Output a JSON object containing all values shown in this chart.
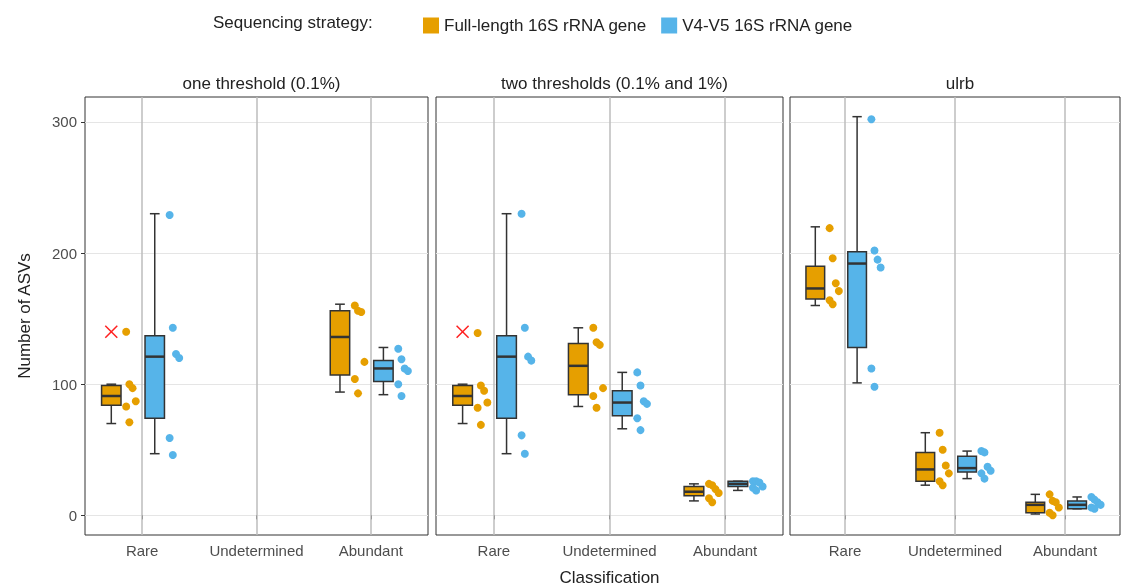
{
  "chart_data": [
    {
      "type": "box",
      "title": "one threshold (0.1%)",
      "ylabel": "Number of ASVs",
      "legend_title": "Sequencing strategy:",
      "legend": "top",
      "categories": [
        "Rare",
        "Undetermined",
        "Abundant"
      ],
      "ylim": [
        -15,
        319
      ],
      "yticks": [
        0,
        100,
        200,
        300
      ],
      "grid": true,
      "series": [
        {
          "name": "Full-length 16S rRNA gene",
          "color": "#e69f00",
          "boxes": [
            {
              "low": 70,
              "q1": 84,
              "median": 91,
              "q3": 99,
              "high": 100,
              "outliers": [
                140
              ]
            },
            null,
            {
              "low": 94,
              "q1": 107,
              "median": 136,
              "q3": 156,
              "high": 161
            }
          ]
        },
        {
          "name": "V4-V5 16S rRNA gene",
          "color": "#56b4e9",
          "boxes": [
            {
              "low": 47,
              "q1": 74,
              "median": 121,
              "q3": 137,
              "high": 230
            },
            null,
            {
              "low": 92,
              "q1": 102,
              "median": 112,
              "q3": 118,
              "high": 128
            }
          ]
        },
        {
          "type": "scatter",
          "color": "#e69f00",
          "x": [
            "Rare",
            "Rare",
            "Rare",
            "Rare",
            "Rare",
            "Rare",
            "Abundant",
            "Abundant",
            "Abundant",
            "Abundant",
            "Abundant",
            "Abundant"
          ],
          "values": [
            140,
            100,
            97,
            87,
            83,
            71,
            160,
            156,
            155,
            117,
            104,
            93
          ]
        },
        {
          "type": "scatter",
          "color": "#56b4e9",
          "x": [
            "Rare",
            "Rare",
            "Rare",
            "Rare",
            "Rare",
            "Rare",
            "Abundant",
            "Abundant",
            "Abundant",
            "Abundant",
            "Abundant",
            "Abundant"
          ],
          "values": [
            229,
            143,
            123,
            120,
            59,
            46,
            127,
            119,
            112,
            110,
            100,
            91
          ]
        }
      ]
    },
    {
      "type": "box",
      "title": "two thresholds (0.1% and 1%)",
      "xlabel": "Classification",
      "tick_labels": "x",
      "categories": [
        "Rare",
        "Undetermined",
        "Abundant"
      ],
      "ylim": [
        -15,
        319
      ],
      "yticks": [
        0,
        100,
        200,
        300
      ],
      "grid": true,
      "series": [
        {
          "color": "#e69f00",
          "boxes": [
            {
              "low": 70,
              "q1": 84,
              "median": 91,
              "q3": 99,
              "high": 100,
              "outliers": [
                140
              ]
            },
            {
              "low": 83,
              "q1": 92,
              "median": 114,
              "q3": 131,
              "high": 143
            },
            {
              "low": 11,
              "q1": 15,
              "median": 18,
              "q3": 22,
              "high": 24
            }
          ]
        },
        {
          "color": "#56b4e9",
          "boxes": [
            {
              "low": 47,
              "q1": 74,
              "median": 121,
              "q3": 137,
              "high": 230
            },
            {
              "low": 66,
              "q1": 76,
              "median": 86,
              "q3": 95,
              "high": 109
            },
            {
              "low": 19,
              "q1": 22,
              "median": 24,
              "q3": 26,
              "high": 26
            }
          ]
        },
        {
          "type": "scatter",
          "color": "#e69f00",
          "x": [
            "Rare",
            "Rare",
            "Rare",
            "Rare",
            "Rare",
            "Rare",
            "Undetermined",
            "Undetermined",
            "Undetermined",
            "Undetermined",
            "Undetermined",
            "Undetermined",
            "Abundant",
            "Abundant",
            "Abundant",
            "Abundant",
            "Abundant",
            "Abundant"
          ],
          "values": [
            139,
            99,
            95,
            86,
            82,
            69,
            143,
            132,
            130,
            97,
            91,
            82,
            24,
            23,
            20,
            17,
            13,
            10
          ]
        },
        {
          "type": "scatter",
          "color": "#56b4e9",
          "x": [
            "Rare",
            "Rare",
            "Rare",
            "Rare",
            "Rare",
            "Rare",
            "Undetermined",
            "Undetermined",
            "Undetermined",
            "Undetermined",
            "Undetermined",
            "Undetermined",
            "Abundant",
            "Abundant",
            "Abundant",
            "Abundant",
            "Abundant",
            "Abundant"
          ],
          "values": [
            230,
            143,
            121,
            118,
            61,
            47,
            109,
            99,
            87,
            85,
            74,
            65,
            26,
            26,
            25,
            22,
            21,
            19
          ]
        }
      ]
    },
    {
      "type": "box",
      "title": "ulrb",
      "tick_labels": "x",
      "categories": [
        "Rare",
        "Undetermined",
        "Abundant"
      ],
      "ylim": [
        -15,
        319
      ],
      "yticks": [
        0,
        100,
        200,
        300
      ],
      "grid": true,
      "series": [
        {
          "color": "#e69f00",
          "boxes": [
            {
              "low": 160,
              "q1": 165,
              "median": 173,
              "q3": 190,
              "high": 220
            },
            {
              "low": 23,
              "q1": 26,
              "median": 35,
              "q3": 48,
              "high": 63
            },
            {
              "low": 1,
              "q1": 2,
              "median": 8,
              "q3": 10,
              "high": 16
            }
          ]
        },
        {
          "color": "#56b4e9",
          "boxes": [
            {
              "low": 101,
              "q1": 128,
              "median": 192,
              "q3": 201,
              "high": 304
            },
            {
              "low": 28,
              "q1": 33,
              "median": 36,
              "q3": 45,
              "high": 49
            },
            {
              "low": 5,
              "q1": 5,
              "median": 8,
              "q3": 11,
              "high": 14
            }
          ]
        },
        {
          "type": "scatter",
          "color": "#e69f00",
          "x": [
            "Rare",
            "Rare",
            "Rare",
            "Rare",
            "Rare",
            "Rare",
            "Undetermined",
            "Undetermined",
            "Undetermined",
            "Undetermined",
            "Undetermined",
            "Undetermined",
            "Abundant",
            "Abundant",
            "Abundant",
            "Abundant",
            "Abundant",
            "Abundant"
          ],
          "values": [
            219,
            196,
            177,
            171,
            164,
            161,
            63,
            50,
            38,
            32,
            26,
            23,
            16,
            11,
            10,
            6,
            2,
            0
          ]
        },
        {
          "type": "scatter",
          "color": "#56b4e9",
          "x": [
            "Rare",
            "Rare",
            "Rare",
            "Rare",
            "Rare",
            "Rare",
            "Undetermined",
            "Undetermined",
            "Undetermined",
            "Undetermined",
            "Undetermined",
            "Undetermined",
            "Abundant",
            "Abundant",
            "Abundant",
            "Abundant",
            "Abundant",
            "Abundant"
          ],
          "values": [
            302,
            202,
            195,
            189,
            112,
            98,
            49,
            48,
            37,
            34,
            32,
            28,
            14,
            12,
            10,
            8,
            6,
            5
          ]
        }
      ]
    }
  ]
}
